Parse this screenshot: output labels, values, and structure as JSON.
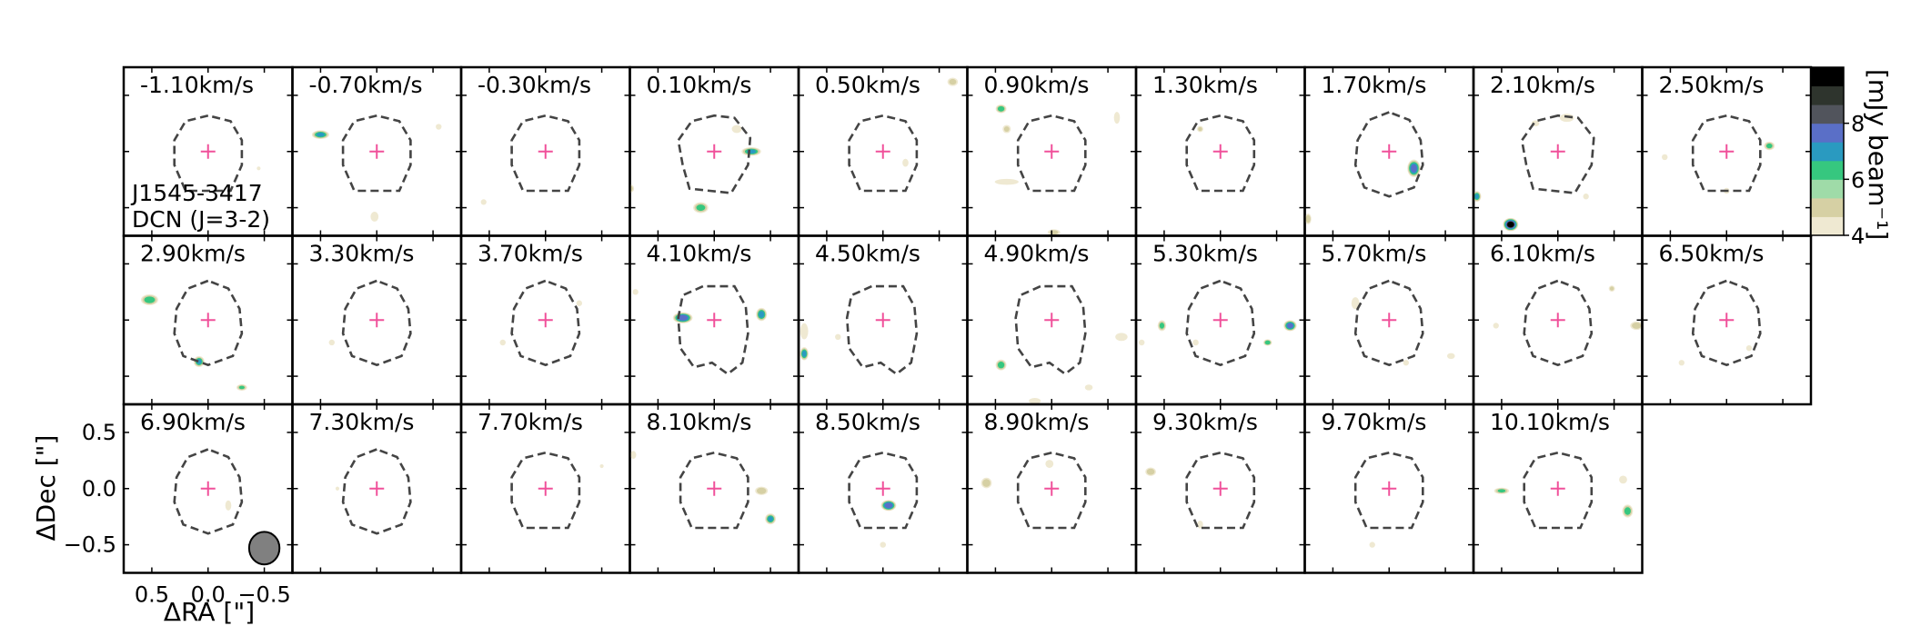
{
  "chart_data": {
    "type": "heatmap",
    "source": "J1545-3417",
    "line": "DCN (J=3-2)",
    "velocity_unit": "km/s",
    "xlabel": "ΔRA [\"]",
    "ylabel": "ΔDec [\"]",
    "xticks": [
      0.5,
      0.0,
      -0.5
    ],
    "xtick_labels": [
      "0.5",
      "0.0",
      "−0.5"
    ],
    "yticks": [
      0.5,
      0.0,
      -0.5
    ],
    "ytick_labels": [
      "0.5",
      "0.0",
      "−0.5"
    ],
    "xlim": [
      0.75,
      -0.75
    ],
    "ylim": [
      -0.75,
      0.75
    ],
    "colorbar": {
      "label": "[mJy beam⁻¹]",
      "range": [
        4,
        10
      ],
      "ticks": [
        4,
        6,
        8
      ],
      "tick_labels": [
        "4",
        "6",
        "8"
      ],
      "colormap": [
        "#efe9d2",
        "#d6d0a4",
        "#9fdba8",
        "#36c77f",
        "#2a9ac0",
        "#5a6fc7",
        "#51545c",
        "#2e342d",
        "#000000"
      ]
    },
    "beam": {
      "x": -0.5,
      "y": -0.53,
      "major": 0.29,
      "minor": 0.27
    },
    "panels": [
      {
        "v": "-1.10km/s",
        "mask": "oct",
        "blobs": [
          {
            "x": -0.45,
            "y": -0.15,
            "a": 0.02,
            "b": 0.02,
            "s": 4.2
          }
        ]
      },
      {
        "v": "-0.70km/s",
        "mask": "oct",
        "blobs": [
          {
            "x": 0.5,
            "y": 0.15,
            "a": 0.08,
            "b": 0.04,
            "s": 7.0
          },
          {
            "x": -0.55,
            "y": 0.22,
            "a": 0.03,
            "b": 0.03,
            "s": 4.3
          },
          {
            "x": 0.02,
            "y": -0.58,
            "a": 0.04,
            "b": 0.05,
            "s": 4.5
          }
        ]
      },
      {
        "v": "-0.30km/s",
        "mask": "oct",
        "blobs": [
          {
            "x": 0.55,
            "y": -0.45,
            "a": 0.03,
            "b": 0.03,
            "s": 4.2
          }
        ]
      },
      {
        "v": "0.10km/s",
        "mask": "oct_irr",
        "blobs": [
          {
            "x": -0.33,
            "y": 0.0,
            "a": 0.09,
            "b": 0.04,
            "s": 7.0
          },
          {
            "x": 0.12,
            "y": -0.5,
            "a": 0.07,
            "b": 0.05,
            "s": 6.4
          },
          {
            "x": -0.2,
            "y": 0.2,
            "a": 0.05,
            "b": 0.04,
            "s": 4.5
          },
          {
            "x": 0.75,
            "y": -0.33,
            "a": 0.04,
            "b": 0.04,
            "s": 5.4
          }
        ]
      },
      {
        "v": "0.50km/s",
        "mask": "oct",
        "blobs": [
          {
            "x": -0.62,
            "y": 0.62,
            "a": 0.05,
            "b": 0.04,
            "s": 5.2
          },
          {
            "x": -0.2,
            "y": -0.1,
            "a": 0.03,
            "b": 0.04,
            "s": 4.6
          }
        ]
      },
      {
        "v": "0.90km/s",
        "mask": "oct",
        "blobs": [
          {
            "x": 0.45,
            "y": 0.38,
            "a": 0.05,
            "b": 0.04,
            "s": 6.6
          },
          {
            "x": 0.4,
            "y": 0.2,
            "a": 0.04,
            "b": 0.04,
            "s": 5.0
          },
          {
            "x": 0.4,
            "y": -0.27,
            "a": 0.12,
            "b": 0.03,
            "s": 4.5
          },
          {
            "x": -0.58,
            "y": 0.3,
            "a": 0.03,
            "b": 0.06,
            "s": 4.5
          },
          {
            "x": -0.02,
            "y": -0.72,
            "a": 0.06,
            "b": 0.03,
            "s": 5.2
          }
        ]
      },
      {
        "v": "1.30km/s",
        "mask": "oct",
        "blobs": [
          {
            "x": 0.18,
            "y": 0.2,
            "a": 0.03,
            "b": 0.03,
            "s": 5.0
          }
        ]
      },
      {
        "v": "1.70km/s",
        "mask": "oval",
        "blobs": [
          {
            "x": -0.22,
            "y": -0.15,
            "a": 0.06,
            "b": 0.08,
            "s": 8.0
          },
          {
            "x": 0.72,
            "y": -0.6,
            "a": 0.03,
            "b": 0.05,
            "s": 5.6
          }
        ]
      },
      {
        "v": "2.10km/s",
        "mask": "oct_irr",
        "blobs": [
          {
            "x": 0.42,
            "y": -0.65,
            "a": 0.07,
            "b": 0.06,
            "s": 9.8
          },
          {
            "x": 0.72,
            "y": -0.4,
            "a": 0.04,
            "b": 0.05,
            "s": 7.0
          },
          {
            "x": -0.08,
            "y": 0.3,
            "a": 0.07,
            "b": 0.04,
            "s": 4.8
          },
          {
            "x": 0.2,
            "y": 0.25,
            "a": 0.04,
            "b": 0.03,
            "s": 4.5
          },
          {
            "x": -0.25,
            "y": -0.4,
            "a": 0.03,
            "b": 0.03,
            "s": 4.3
          }
        ]
      },
      {
        "v": "2.50km/s",
        "mask": "oct",
        "blobs": [
          {
            "x": -0.38,
            "y": 0.05,
            "a": 0.05,
            "b": 0.04,
            "s": 6.2
          },
          {
            "x": 0.55,
            "y": -0.05,
            "a": 0.03,
            "b": 0.03,
            "s": 4.4
          },
          {
            "x": 0.0,
            "y": -0.35,
            "a": 0.03,
            "b": 0.03,
            "s": 4.4
          }
        ]
      },
      {
        "v": "2.90km/s",
        "mask": "oval",
        "blobs": [
          {
            "x": 0.52,
            "y": 0.18,
            "a": 0.08,
            "b": 0.05,
            "s": 6.6
          },
          {
            "x": 0.08,
            "y": -0.37,
            "a": 0.05,
            "b": 0.05,
            "s": 7.0
          },
          {
            "x": -0.3,
            "y": -0.6,
            "a": 0.05,
            "b": 0.03,
            "s": 6.0
          }
        ]
      },
      {
        "v": "3.30km/s",
        "mask": "oval",
        "blobs": [
          {
            "x": 0.4,
            "y": -0.2,
            "a": 0.03,
            "b": 0.03,
            "s": 4.3
          }
        ]
      },
      {
        "v": "3.70km/s",
        "mask": "oval",
        "blobs": [
          {
            "x": 0.38,
            "y": -0.2,
            "a": 0.03,
            "b": 0.03,
            "s": 4.4
          },
          {
            "x": -0.3,
            "y": 0.15,
            "a": 0.03,
            "b": 0.03,
            "s": 4.3
          }
        ]
      },
      {
        "v": "4.10km/s",
        "mask": "irregular",
        "blobs": [
          {
            "x": 0.28,
            "y": 0.02,
            "a": 0.09,
            "b": 0.05,
            "s": 8.4
          },
          {
            "x": -0.42,
            "y": 0.05,
            "a": 0.05,
            "b": 0.06,
            "s": 7.4
          },
          {
            "x": 0.7,
            "y": 0.25,
            "a": 0.03,
            "b": 0.03,
            "s": 4.3
          }
        ]
      },
      {
        "v": "4.50km/s",
        "mask": "irregular",
        "blobs": [
          {
            "x": 0.7,
            "y": -0.3,
            "a": 0.04,
            "b": 0.06,
            "s": 7.2
          },
          {
            "x": 0.7,
            "y": -0.1,
            "a": 0.04,
            "b": 0.08,
            "s": 4.6
          },
          {
            "x": 0.4,
            "y": -0.15,
            "a": 0.03,
            "b": 0.03,
            "s": 4.4
          }
        ]
      },
      {
        "v": "4.90km/s",
        "mask": "irregular",
        "blobs": [
          {
            "x": 0.45,
            "y": -0.4,
            "a": 0.05,
            "b": 0.05,
            "s": 6.6
          },
          {
            "x": -0.62,
            "y": -0.15,
            "a": 0.06,
            "b": 0.04,
            "s": 4.8
          },
          {
            "x": -0.33,
            "y": -0.6,
            "a": 0.04,
            "b": 0.03,
            "s": 4.4
          },
          {
            "x": 0.15,
            "y": -0.72,
            "a": 0.06,
            "b": 0.03,
            "s": 4.5
          }
        ]
      },
      {
        "v": "5.30km/s",
        "mask": "oval",
        "blobs": [
          {
            "x": -0.62,
            "y": -0.05,
            "a": 0.06,
            "b": 0.05,
            "s": 8.0
          },
          {
            "x": -0.42,
            "y": -0.2,
            "a": 0.04,
            "b": 0.03,
            "s": 6.8
          },
          {
            "x": 0.52,
            "y": -0.05,
            "a": 0.04,
            "b": 0.05,
            "s": 6.2
          },
          {
            "x": 0.22,
            "y": -0.2,
            "a": 0.03,
            "b": 0.03,
            "s": 4.6
          },
          {
            "x": 0.7,
            "y": -0.2,
            "a": 0.03,
            "b": 0.03,
            "s": 4.4
          }
        ]
      },
      {
        "v": "5.70km/s",
        "mask": "oval",
        "blobs": [
          {
            "x": 0.3,
            "y": 0.15,
            "a": 0.04,
            "b": 0.06,
            "s": 4.5
          },
          {
            "x": -0.55,
            "y": -0.32,
            "a": 0.04,
            "b": 0.03,
            "s": 4.4
          },
          {
            "x": -0.15,
            "y": -0.38,
            "a": 0.03,
            "b": 0.03,
            "s": 4.3
          }
        ]
      },
      {
        "v": "6.10km/s",
        "mask": "oval",
        "blobs": [
          {
            "x": -0.7,
            "y": -0.05,
            "a": 0.06,
            "b": 0.04,
            "s": 5.6
          },
          {
            "x": -0.48,
            "y": 0.28,
            "a": 0.03,
            "b": 0.03,
            "s": 5.0
          },
          {
            "x": 0.55,
            "y": -0.05,
            "a": 0.03,
            "b": 0.03,
            "s": 4.3
          }
        ]
      },
      {
        "v": "6.50km/s",
        "mask": "oval",
        "blobs": [
          {
            "x": 0.4,
            "y": -0.38,
            "a": 0.03,
            "b": 0.03,
            "s": 4.3
          },
          {
            "x": -0.2,
            "y": -0.25,
            "a": 0.03,
            "b": 0.03,
            "s": 4.3
          }
        ]
      },
      {
        "v": "6.90km/s",
        "mask": "oval",
        "blobs": [
          {
            "x": -0.18,
            "y": -0.15,
            "a": 0.03,
            "b": 0.05,
            "s": 4.6
          }
        ]
      },
      {
        "v": "7.30km/s",
        "mask": "oval",
        "blobs": [
          {
            "x": 0.35,
            "y": 0.0,
            "a": 0.02,
            "b": 0.02,
            "s": 4.2
          }
        ]
      },
      {
        "v": "7.70km/s",
        "mask": "oct",
        "blobs": [
          {
            "x": -0.5,
            "y": 0.2,
            "a": 0.02,
            "b": 0.02,
            "s": 4.2
          }
        ]
      },
      {
        "v": "8.10km/s",
        "mask": "oct",
        "blobs": [
          {
            "x": -0.42,
            "y": -0.02,
            "a": 0.06,
            "b": 0.04,
            "s": 5.6
          },
          {
            "x": -0.5,
            "y": -0.27,
            "a": 0.05,
            "b": 0.05,
            "s": 7.0
          },
          {
            "x": 0.72,
            "y": 0.3,
            "a": 0.03,
            "b": 0.04,
            "s": 4.5
          }
        ]
      },
      {
        "v": "8.50km/s",
        "mask": "oct",
        "blobs": [
          {
            "x": -0.05,
            "y": -0.15,
            "a": 0.07,
            "b": 0.05,
            "s": 8.4
          },
          {
            "x": 0.0,
            "y": -0.5,
            "a": 0.03,
            "b": 0.03,
            "s": 4.4
          }
        ]
      },
      {
        "v": "8.90km/s",
        "mask": "oct",
        "blobs": [
          {
            "x": 0.58,
            "y": 0.05,
            "a": 0.05,
            "b": 0.05,
            "s": 5.6
          },
          {
            "x": 0.02,
            "y": 0.22,
            "a": 0.04,
            "b": 0.04,
            "s": 4.6
          }
        ]
      },
      {
        "v": "9.30km/s",
        "mask": "oct",
        "blobs": [
          {
            "x": 0.62,
            "y": 0.15,
            "a": 0.05,
            "b": 0.04,
            "s": 5.6
          },
          {
            "x": 0.18,
            "y": -0.32,
            "a": 0.03,
            "b": 0.04,
            "s": 4.4
          }
        ]
      },
      {
        "v": "9.70km/s",
        "mask": "oct",
        "blobs": [
          {
            "x": 0.15,
            "y": -0.5,
            "a": 0.03,
            "b": 0.03,
            "s": 4.3
          }
        ]
      },
      {
        "v": "10.10km/s",
        "mask": "oct",
        "blobs": [
          {
            "x": -0.62,
            "y": -0.2,
            "a": 0.05,
            "b": 0.06,
            "s": 6.4
          },
          {
            "x": 0.5,
            "y": -0.02,
            "a": 0.07,
            "b": 0.03,
            "s": 6.0
          },
          {
            "x": -0.58,
            "y": 0.08,
            "a": 0.04,
            "b": 0.04,
            "s": 4.6
          }
        ]
      }
    ]
  }
}
